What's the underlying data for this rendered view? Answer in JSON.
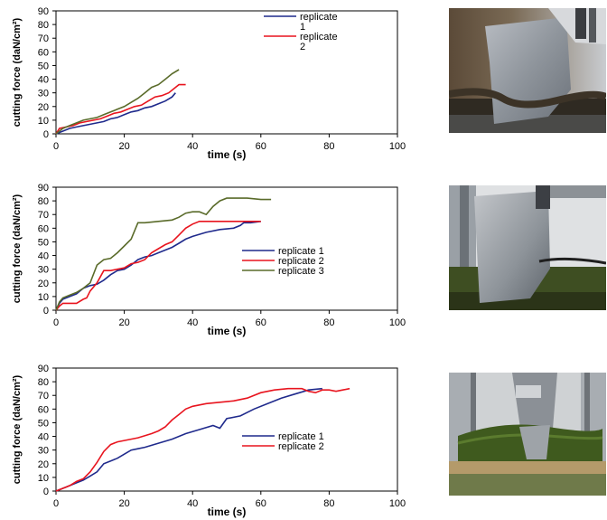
{
  "colors": {
    "replicate_1": "#1f2a8c",
    "replicate_2": "#e8141e",
    "replicate_3": "#5a6b2a",
    "axis": "#000000"
  },
  "chart_data": [
    {
      "type": "line",
      "xlabel": "time (s)",
      "ylabel": "cutting force (daN/cm²)",
      "xlim": [
        0,
        100
      ],
      "ylim": [
        0,
        90
      ],
      "x_ticks": [
        "0",
        "20",
        "40",
        "60",
        "80",
        "100"
      ],
      "y_ticks": [
        "0",
        "10",
        "20",
        "30",
        "40",
        "50",
        "60",
        "70",
        "80",
        "90"
      ],
      "legend_position": "top-right",
      "series": [
        {
          "name": "replicate\n1",
          "color": "#1f2a8c",
          "x": [
            0,
            2,
            4,
            6,
            8,
            10,
            12,
            14,
            16,
            18,
            20,
            22,
            24,
            26,
            28,
            30,
            32,
            34,
            35
          ],
          "y": [
            0,
            2,
            4,
            5,
            6,
            7,
            8,
            9,
            11,
            12,
            14,
            16,
            17,
            19,
            20,
            22,
            24,
            27,
            30
          ]
        },
        {
          "name": "replicate\n2",
          "color": "#e8141e",
          "x": [
            0,
            1,
            3,
            5,
            7,
            9,
            11,
            13,
            15,
            17,
            19,
            21,
            23,
            25,
            27,
            29,
            31,
            33,
            35,
            36,
            38
          ],
          "y": [
            0,
            4,
            5,
            6,
            8,
            9,
            10,
            11,
            13,
            15,
            16,
            18,
            20,
            21,
            24,
            27,
            28,
            30,
            34,
            36,
            36
          ]
        },
        {
          "name": "",
          "color": "#5a6b2a",
          "x": [
            0,
            2,
            4,
            6,
            8,
            10,
            12,
            14,
            16,
            18,
            20,
            22,
            24,
            26,
            28,
            30,
            32,
            34,
            36
          ],
          "y": [
            0,
            4,
            6,
            8,
            10,
            11,
            12,
            14,
            16,
            18,
            20,
            23,
            26,
            30,
            34,
            36,
            40,
            44,
            47
          ]
        }
      ]
    },
    {
      "type": "line",
      "xlabel": "time (s)",
      "ylabel": "cutting force (daN/cm²)",
      "xlim": [
        0,
        100
      ],
      "ylim": [
        0,
        90
      ],
      "x_ticks": [
        "0",
        "20",
        "40",
        "60",
        "80",
        "100"
      ],
      "y_ticks": [
        "0",
        "10",
        "20",
        "30",
        "40",
        "50",
        "60",
        "70",
        "80",
        "90"
      ],
      "legend_position": "center-right",
      "series": [
        {
          "name": "replicate 1",
          "color": "#1f2a8c",
          "x": [
            0,
            1,
            2,
            4,
            6,
            8,
            10,
            12,
            14,
            16,
            18,
            20,
            22,
            24,
            26,
            28,
            30,
            32,
            34,
            36,
            38,
            40,
            44,
            48,
            52,
            54,
            55,
            57,
            60
          ],
          "y": [
            0,
            5,
            8,
            10,
            12,
            16,
            18,
            19,
            22,
            26,
            29,
            30,
            33,
            37,
            39,
            40,
            42,
            44,
            46,
            49,
            52,
            54,
            57,
            59,
            60,
            62,
            64,
            64,
            65
          ]
        },
        {
          "name": "replicate 2",
          "color": "#e8141e",
          "x": [
            0,
            1,
            2,
            4,
            6,
            8,
            9,
            10,
            12,
            14,
            16,
            18,
            20,
            22,
            24,
            26,
            28,
            30,
            32,
            34,
            36,
            38,
            40,
            42,
            46,
            50,
            55,
            60
          ],
          "y": [
            0,
            3,
            5,
            5,
            5,
            8,
            9,
            14,
            20,
            29,
            29,
            30,
            31,
            34,
            35,
            37,
            42,
            45,
            48,
            50,
            55,
            60,
            63,
            65,
            65,
            65,
            65,
            65
          ]
        },
        {
          "name": "replicate 3",
          "color": "#5a6b2a",
          "x": [
            0,
            1,
            2,
            4,
            6,
            8,
            10,
            12,
            14,
            16,
            18,
            20,
            22,
            24,
            26,
            30,
            34,
            36,
            38,
            40,
            42,
            44,
            46,
            48,
            50,
            52,
            56,
            60,
            63
          ],
          "y": [
            0,
            6,
            9,
            11,
            13,
            16,
            20,
            33,
            37,
            38,
            42,
            47,
            52,
            64,
            64,
            65,
            66,
            68,
            71,
            72,
            72,
            70,
            76,
            80,
            82,
            82,
            82,
            81,
            81
          ]
        }
      ]
    },
    {
      "type": "line",
      "xlabel": "time (s)",
      "ylabel": "cutting force (daN/cm²)",
      "xlim": [
        0,
        100
      ],
      "ylim": [
        0,
        90
      ],
      "x_ticks": [
        "0",
        "20",
        "40",
        "60",
        "80",
        "100"
      ],
      "y_ticks": [
        "0",
        "10",
        "20",
        "30",
        "40",
        "50",
        "60",
        "70",
        "80",
        "90"
      ],
      "legend_position": "bottom-right",
      "series": [
        {
          "name": "replicate 1",
          "color": "#1f2a8c",
          "x": [
            0,
            2,
            4,
            6,
            8,
            10,
            12,
            14,
            16,
            18,
            20,
            22,
            24,
            26,
            30,
            34,
            38,
            42,
            46,
            48,
            50,
            54,
            58,
            62,
            66,
            70,
            74,
            78
          ],
          "y": [
            0,
            2,
            4,
            6,
            8,
            11,
            14,
            20,
            22,
            24,
            27,
            30,
            31,
            32,
            35,
            38,
            42,
            45,
            48,
            46,
            53,
            55,
            60,
            64,
            68,
            71,
            74,
            75
          ]
        },
        {
          "name": "replicate 2",
          "color": "#e8141e",
          "x": [
            0,
            2,
            4,
            6,
            8,
            10,
            12,
            14,
            16,
            18,
            20,
            24,
            28,
            30,
            32,
            34,
            36,
            38,
            40,
            44,
            48,
            52,
            56,
            60,
            64,
            68,
            72,
            74,
            76,
            78,
            80,
            82,
            84,
            86
          ],
          "y": [
            0,
            2,
            4,
            7,
            9,
            14,
            21,
            29,
            34,
            36,
            37,
            39,
            42,
            44,
            47,
            52,
            56,
            60,
            62,
            64,
            65,
            66,
            68,
            72,
            74,
            75,
            75,
            73,
            72,
            74,
            74,
            73,
            74,
            75
          ]
        }
      ]
    }
  ]
}
